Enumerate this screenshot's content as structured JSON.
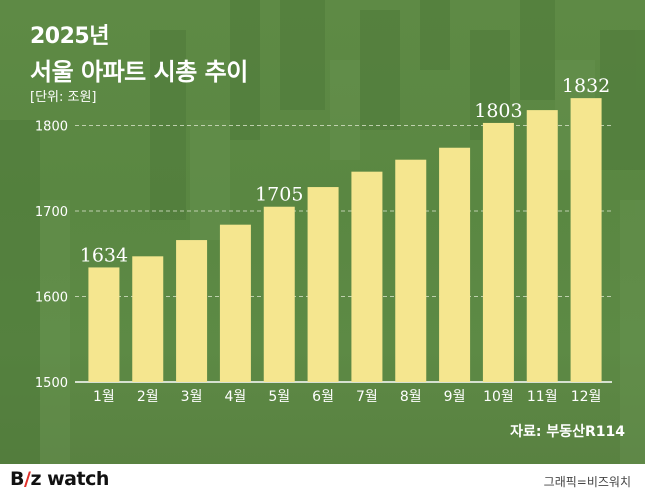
{
  "header": {
    "year": "2025년",
    "title": "서울 아파트 시총 추이",
    "unit": "[단위: 조원]"
  },
  "source": "자료: 부동산R114",
  "footer": {
    "logo_b": "B",
    "logo_slash": "/",
    "logo_z": "z",
    "logo_watch": " watch",
    "credit": "그래픽=비즈워치"
  },
  "colors": {
    "bar": "#f5e68f",
    "gridline": "#d8e2c8",
    "text": "#ffffff"
  },
  "chart_data": {
    "type": "bar",
    "categories": [
      "1월",
      "2월",
      "3월",
      "4월",
      "5월",
      "6월",
      "7월",
      "8월",
      "9월",
      "10월",
      "11월",
      "12월"
    ],
    "values": [
      1634,
      1647,
      1666,
      1684,
      1705,
      1728,
      1746,
      1760,
      1774,
      1803,
      1818,
      1832
    ],
    "data_labels": [
      {
        "index": 0,
        "text": "1634"
      },
      {
        "index": 4,
        "text": "1705"
      },
      {
        "index": 9,
        "text": "1803"
      },
      {
        "index": 11,
        "text": "1832"
      }
    ],
    "yticks": [
      1500,
      1600,
      1700,
      1800
    ],
    "ylim": [
      1500,
      1840
    ],
    "grid": true,
    "title": "서울 아파트 시총 추이",
    "xlabel": "",
    "ylabel": ""
  }
}
